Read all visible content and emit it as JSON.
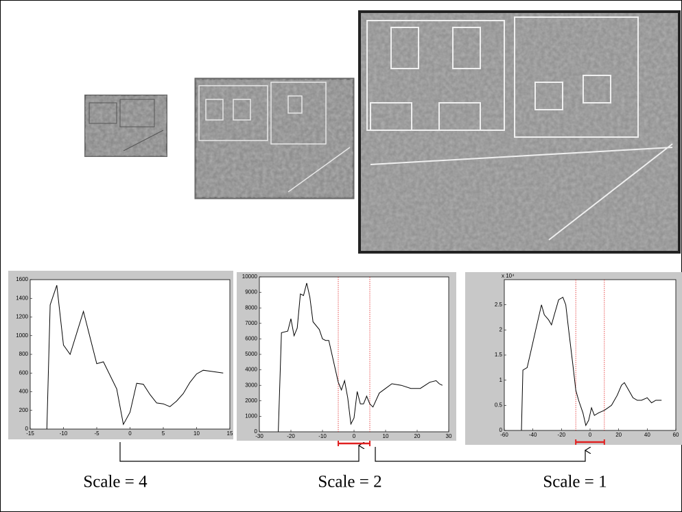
{
  "chart_data": [
    {
      "type": "line",
      "caption": "Scale = 4",
      "color": "#000000",
      "x": [
        -12.5,
        -12,
        -11,
        -10,
        -9,
        -7,
        -5,
        -4,
        -2,
        -1,
        0,
        1,
        2,
        3,
        4,
        5,
        6,
        7,
        8,
        9,
        10,
        11,
        12,
        13,
        14
      ],
      "values": [
        0,
        1330,
        1540,
        900,
        800,
        1260,
        700,
        720,
        430,
        50,
        180,
        490,
        480,
        370,
        280,
        270,
        240,
        300,
        380,
        500,
        590,
        630,
        620,
        610,
        600
      ],
      "xlim": [
        -15,
        15
      ],
      "xticks": [
        -15,
        -10,
        -5,
        0,
        5,
        10,
        15
      ],
      "ylim": [
        0,
        1600
      ],
      "yticks": [
        0,
        200,
        400,
        600,
        800,
        1000,
        1200,
        1400,
        1600
      ]
    },
    {
      "type": "line",
      "caption": "Scale = 2",
      "color": "#000000",
      "x": [
        -24,
        -23,
        -21,
        -20,
        -19,
        -18,
        -17,
        -16,
        -15,
        -14,
        -13,
        -11,
        -10,
        -9,
        -8,
        -7,
        -5,
        -4,
        -3,
        -2,
        -1,
        0,
        1,
        2,
        3,
        4,
        5,
        6,
        8,
        10,
        12,
        15,
        18,
        21,
        24,
        26,
        27,
        28
      ],
      "values": [
        0,
        6400,
        6500,
        7300,
        6200,
        6700,
        8900,
        8800,
        9600,
        8700,
        7100,
        6600,
        6000,
        5900,
        5900,
        5000,
        3200,
        2700,
        3300,
        2200,
        500,
        900,
        2600,
        1800,
        1800,
        2300,
        1800,
        1600,
        2500,
        2800,
        3100,
        3000,
        2800,
        2800,
        3200,
        3300,
        3100,
        3000
      ],
      "xlim": [
        -30,
        30
      ],
      "xticks": [
        -30,
        -20,
        -10,
        0,
        10,
        20,
        30
      ],
      "ylim": [
        0,
        10000
      ],
      "yticks": [
        0,
        1000,
        2000,
        3000,
        4000,
        5000,
        6000,
        7000,
        8000,
        9000,
        10000
      ],
      "window": [
        -5,
        5
      ],
      "window_color": "#e02020"
    },
    {
      "type": "line",
      "caption": "Scale = 1",
      "color": "#000000",
      "y_multiplier": "x 10⁴",
      "x": [
        -48,
        -47,
        -44,
        -42,
        -38,
        -34,
        -32,
        -29,
        -27,
        -25,
        -22,
        -19,
        -17,
        -15,
        -12,
        -10,
        -8,
        -5,
        -3,
        -1,
        1,
        3,
        6,
        10,
        15,
        19,
        22,
        24,
        27,
        30,
        33,
        36,
        40,
        43,
        46,
        50
      ],
      "values": [
        0,
        1.2,
        1.25,
        1.5,
        2.0,
        2.5,
        2.3,
        2.2,
        2.1,
        2.3,
        2.6,
        2.65,
        2.5,
        2.0,
        1.3,
        0.8,
        0.6,
        0.35,
        0.1,
        0.2,
        0.45,
        0.3,
        0.35,
        0.4,
        0.5,
        0.7,
        0.9,
        0.95,
        0.8,
        0.65,
        0.6,
        0.6,
        0.65,
        0.55,
        0.6,
        0.6
      ],
      "xlim": [
        -60,
        60
      ],
      "xticks": [
        -60,
        -40,
        -20,
        0,
        20,
        40,
        60
      ],
      "ylim": [
        0,
        3
      ],
      "yticks": [
        0,
        0.5,
        1,
        1.5,
        2,
        2.5
      ],
      "window": [
        -10,
        10
      ],
      "window_color": "#e02020"
    }
  ]
}
